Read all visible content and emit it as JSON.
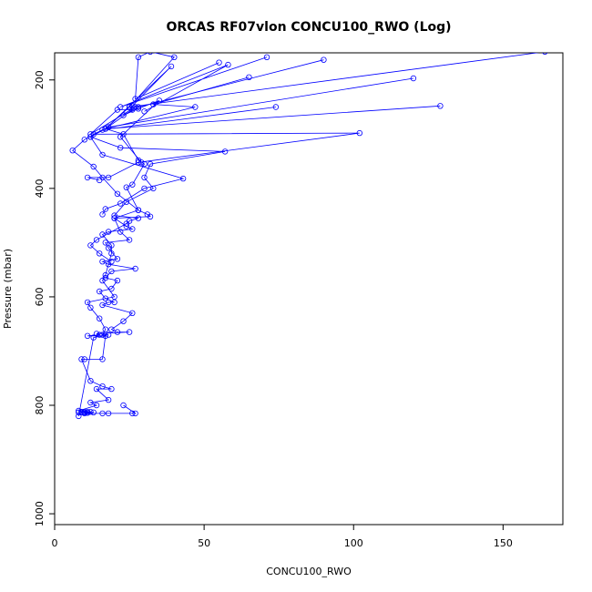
{
  "chart_data": {
    "type": "line",
    "title": "ORCAS RF07vlon CONCU100_RWO (Log)",
    "xlabel": "CONCU100_RWO",
    "ylabel": "Pressure (mbar)",
    "xlim": [
      0,
      170
    ],
    "ylim": [
      1020,
      150
    ],
    "y_reversed": true,
    "xticks": [
      0,
      50,
      100,
      150
    ],
    "yticks": [
      200,
      400,
      600,
      800,
      1000
    ],
    "grid": false,
    "color": "#0000ff",
    "series": [
      {
        "x": [
          27,
          12,
          21,
          26,
          17,
          23,
          28,
          30,
          26,
          24,
          28,
          31,
          32,
          20,
          22,
          25,
          17,
          18,
          21,
          16,
          18,
          27,
          19,
          17,
          21,
          19,
          15,
          17,
          20,
          18,
          16,
          26,
          23,
          19,
          21,
          25,
          14,
          15,
          11,
          17,
          16,
          10,
          9,
          12,
          16,
          19,
          14,
          18,
          12,
          14,
          8,
          9,
          11,
          12,
          10,
          9,
          10,
          8,
          13,
          11,
          10,
          16,
          18,
          26,
          27,
          23
        ],
        "y": [
          250,
          300,
          255,
          255,
          290,
          300,
          348,
          355,
          393,
          398,
          440,
          448,
          452,
          455,
          480,
          495,
          500,
          510,
          530,
          535,
          540,
          548,
          553,
          565,
          570,
          585,
          590,
          603,
          610,
          610,
          615,
          630,
          645,
          660,
          665,
          665,
          668,
          670,
          672,
          672,
          715,
          715,
          715,
          755,
          765,
          770,
          770,
          790,
          795,
          800,
          810,
          812,
          812,
          812,
          812,
          813,
          813,
          813,
          813,
          814,
          815,
          815,
          815,
          815,
          815,
          800
        ]
      },
      {
        "x": [
          164,
          25,
          17,
          10,
          6,
          13,
          16,
          21,
          28,
          20,
          24,
          26,
          18,
          16,
          19,
          19,
          17,
          16,
          20,
          11,
          12,
          15,
          17,
          16,
          18,
          13,
          8
        ],
        "y": [
          148,
          250,
          290,
          310,
          330,
          360,
          380,
          410,
          440,
          455,
          470,
          475,
          480,
          485,
          505,
          520,
          560,
          570,
          600,
          610,
          620,
          640,
          660,
          670,
          670,
          675,
          820
        ]
      },
      {
        "x": [
          129,
          17,
          12,
          22,
          57,
          32,
          30,
          33,
          24,
          20,
          28,
          25,
          24,
          14,
          12,
          15,
          19
        ],
        "y": [
          248,
          290,
          305,
          325,
          332,
          355,
          380,
          400,
          425,
          450,
          455,
          460,
          465,
          495,
          505,
          520,
          535
        ]
      },
      {
        "x": [
          120,
          18,
          13,
          102,
          28,
          18,
          11,
          15
        ],
        "y": [
          197,
          287,
          300,
          298,
          352,
          380,
          380,
          385
        ]
      },
      {
        "x": [
          74,
          16,
          12,
          16,
          43,
          30,
          22,
          17,
          16
        ],
        "y": [
          250,
          292,
          305,
          338,
          382,
          400,
          428,
          438,
          448
        ]
      },
      {
        "x": [
          90,
          28,
          23,
          28,
          35,
          22,
          29
        ],
        "y": [
          163,
          250,
          265,
          253,
          238,
          305,
          352
        ]
      },
      {
        "x": [
          65,
          33,
          47,
          17,
          39,
          26
        ],
        "y": [
          195,
          245,
          250,
          290,
          175,
          248
        ]
      },
      {
        "x": [
          55,
          27,
          28,
          32,
          40,
          25
        ],
        "y": [
          168,
          235,
          158,
          148,
          158,
          250
        ]
      },
      {
        "x": [
          71,
          22,
          58,
          30
        ],
        "y": [
          158,
          250,
          172,
          258
        ]
      }
    ]
  }
}
